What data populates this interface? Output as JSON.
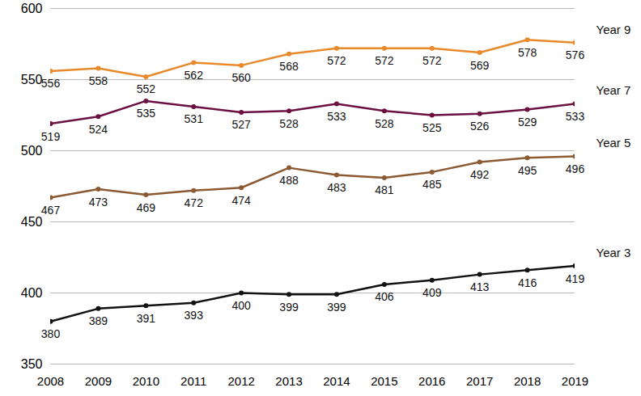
{
  "chart_data": {
    "type": "line",
    "x": [
      2008,
      2009,
      2010,
      2011,
      2012,
      2013,
      2014,
      2015,
      2016,
      2017,
      2018,
      2019
    ],
    "xlim": [
      2008,
      2019
    ],
    "xticks": [
      2008,
      2009,
      2010,
      2011,
      2012,
      2013,
      2014,
      2015,
      2016,
      2017,
      2018,
      2019
    ],
    "ylim": [
      350,
      600
    ],
    "yticks": [
      350,
      400,
      450,
      500,
      550,
      600
    ],
    "grid": true,
    "data_labels": true,
    "series": [
      {
        "name": "Year 9",
        "color": "#e8892b",
        "marker": "circle",
        "values": [
          556,
          558,
          552,
          562,
          560,
          568,
          572,
          572,
          572,
          569,
          578,
          576
        ]
      },
      {
        "name": "Year 7",
        "color": "#6b1040",
        "marker": "circle",
        "values": [
          519,
          524,
          535,
          531,
          527,
          528,
          533,
          528,
          525,
          526,
          529,
          533
        ]
      },
      {
        "name": "Year 5",
        "color": "#8c5a32",
        "marker": "circle",
        "values": [
          467,
          473,
          469,
          472,
          474,
          488,
          483,
          481,
          485,
          492,
          495,
          496
        ]
      },
      {
        "name": "Year 3",
        "color": "#111111",
        "marker": "circle",
        "values": [
          380,
          389,
          391,
          393,
          400,
          399,
          399,
          406,
          409,
          413,
          416,
          419
        ]
      }
    ]
  }
}
